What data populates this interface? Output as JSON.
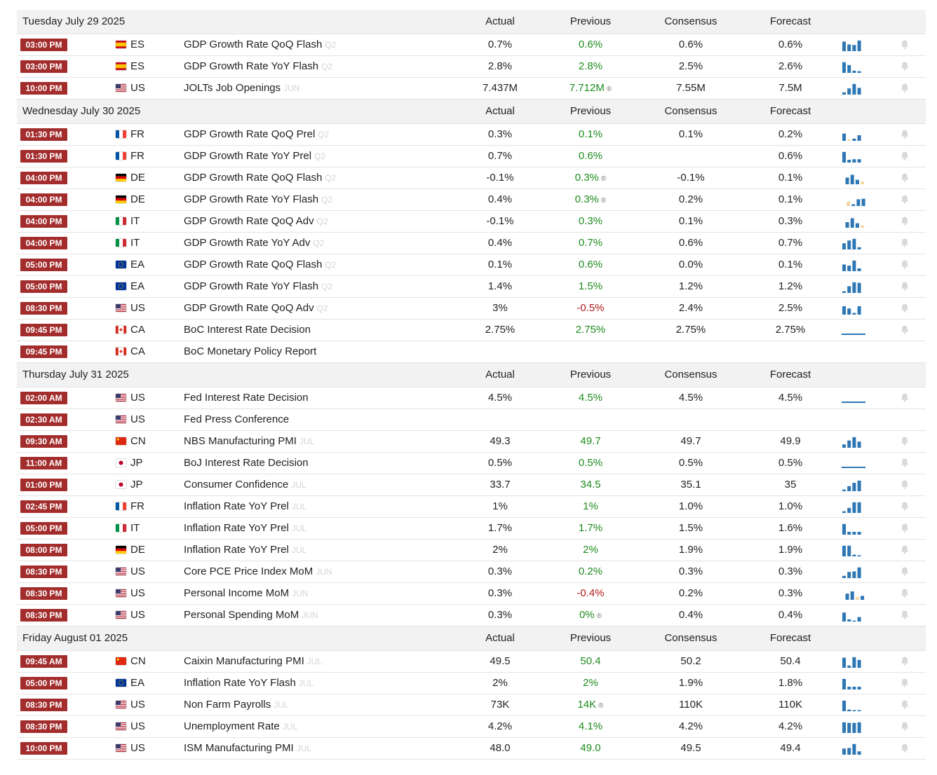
{
  "colors": {
    "time_badge": "#a32d2d",
    "prev_up": "#1e8b1e",
    "prev_down": "#b31b1b",
    "spark_bar": "#2e77b5",
    "spark_pending": "#f4d9a4"
  },
  "days": [
    {
      "date": "Tuesday July 29 2025",
      "headers": {
        "actual": "Actual",
        "previous": "Previous",
        "consensus": "Consensus",
        "forecast": "Forecast"
      },
      "events": [
        {
          "time": "03:00 PM",
          "flag": "es",
          "country": "ES",
          "event": "GDP Growth Rate QoQ Flash",
          "ref": "Q2",
          "actual": "0.7%",
          "previous": "0.6%",
          "prev_trend": "up",
          "revised": false,
          "consensus": "0.6%",
          "forecast": "0.6%",
          "spark": [
            0.85,
            0.6,
            0.55,
            0.95
          ],
          "pending": [],
          "line": false
        },
        {
          "time": "03:00 PM",
          "flag": "es",
          "country": "ES",
          "event": "GDP Growth Rate YoY Flash",
          "ref": "Q2",
          "actual": "2.8%",
          "previous": "2.8%",
          "prev_trend": "up",
          "revised": false,
          "consensus": "2.5%",
          "forecast": "2.6%",
          "spark": [
            0.95,
            0.7,
            0.2,
            0.15
          ],
          "pending": [],
          "line": false
        },
        {
          "time": "10:00 PM",
          "flag": "us",
          "country": "US",
          "event": "JOLTs Job Openings",
          "ref": "JUN",
          "actual": "7.437M",
          "previous": "7.712M",
          "prev_trend": "up",
          "revised": true,
          "consensus": "7.55M",
          "forecast": "7.5M",
          "spark": [
            0.2,
            0.55,
            0.95,
            0.6
          ],
          "pending": [],
          "line": false
        }
      ]
    },
    {
      "date": "Wednesday July 30 2025",
      "headers": {
        "actual": "Actual",
        "previous": "Previous",
        "consensus": "Consensus",
        "forecast": "Forecast"
      },
      "events": [
        {
          "time": "01:30 PM",
          "flag": "fr",
          "country": "FR",
          "event": "GDP Growth Rate QoQ Prel",
          "ref": "Q2",
          "actual": "0.3%",
          "previous": "0.1%",
          "prev_trend": "up",
          "revised": false,
          "consensus": "0.1%",
          "forecast": "0.2%",
          "spark": [
            0.65,
            0.15,
            0.2,
            0.5
          ],
          "pending": [
            1
          ],
          "line": false
        },
        {
          "time": "01:30 PM",
          "flag": "fr",
          "country": "FR",
          "event": "GDP Growth Rate YoY Prel",
          "ref": "Q2",
          "actual": "0.7%",
          "previous": "0.6%",
          "prev_trend": "up",
          "revised": false,
          "consensus": "",
          "forecast": "0.6%",
          "spark": [
            0.95,
            0.25,
            0.3,
            0.3
          ],
          "pending": [],
          "line": false
        },
        {
          "time": "04:00 PM",
          "flag": "de",
          "country": "DE",
          "event": "GDP Growth Rate QoQ Flash",
          "ref": "Q2",
          "actual": "-0.1%",
          "previous": "0.3%",
          "prev_trend": "up",
          "revised": true,
          "consensus": "-0.1%",
          "forecast": "0.1%",
          "spark": [
            0.6,
            0.85,
            0.4,
            0.25
          ],
          "pending": [
            3
          ],
          "line": false,
          "shift": 0.45
        },
        {
          "time": "04:00 PM",
          "flag": "de",
          "country": "DE",
          "event": "GDP Growth Rate YoY Flash",
          "ref": "Q2",
          "actual": "0.4%",
          "previous": "0.3%",
          "prev_trend": "up",
          "revised": true,
          "consensus": "0.2%",
          "forecast": "0.1%",
          "spark": [
            0.4,
            0.15,
            0.6,
            0.65
          ],
          "pending": [
            0
          ],
          "line": false,
          "shift": 0.6
        },
        {
          "time": "04:00 PM",
          "flag": "it",
          "country": "IT",
          "event": "GDP Growth Rate QoQ Adv",
          "ref": "Q2",
          "actual": "-0.1%",
          "previous": "0.3%",
          "prev_trend": "up",
          "revised": false,
          "consensus": "0.1%",
          "forecast": "0.3%",
          "spark": [
            0.5,
            0.85,
            0.4,
            0.2
          ],
          "pending": [
            3
          ],
          "line": false,
          "shift": 0.45
        },
        {
          "time": "04:00 PM",
          "flag": "it",
          "country": "IT",
          "event": "GDP Growth Rate YoY Adv",
          "ref": "Q2",
          "actual": "0.4%",
          "previous": "0.7%",
          "prev_trend": "up",
          "revised": false,
          "consensus": "0.6%",
          "forecast": "0.7%",
          "spark": [
            0.55,
            0.8,
            0.95,
            0.2
          ],
          "pending": [],
          "line": false
        },
        {
          "time": "05:00 PM",
          "flag": "eu",
          "country": "EA",
          "event": "GDP Growth Rate QoQ Flash",
          "ref": "Q2",
          "actual": "0.1%",
          "previous": "0.6%",
          "prev_trend": "up",
          "revised": false,
          "consensus": "0.0%",
          "forecast": "0.1%",
          "spark": [
            0.6,
            0.5,
            0.95,
            0.25
          ],
          "pending": [],
          "line": false
        },
        {
          "time": "05:00 PM",
          "flag": "eu",
          "country": "EA",
          "event": "GDP Growth Rate YoY Flash",
          "ref": "Q2",
          "actual": "1.4%",
          "previous": "1.5%",
          "prev_trend": "up",
          "revised": false,
          "consensus": "1.2%",
          "forecast": "1.2%",
          "spark": [
            0.15,
            0.6,
            0.95,
            0.9
          ],
          "pending": [],
          "line": false
        },
        {
          "time": "08:30 PM",
          "flag": "us",
          "country": "US",
          "event": "GDP Growth Rate QoQ Adv",
          "ref": "Q2",
          "actual": "3%",
          "previous": "-0.5%",
          "prev_trend": "down",
          "revised": false,
          "consensus": "2.4%",
          "forecast": "2.5%",
          "spark": [
            0.75,
            0.55,
            0.15,
            0.75
          ],
          "pending": [],
          "line": false
        },
        {
          "time": "09:45 PM",
          "flag": "ca",
          "country": "CA",
          "event": "BoC Interest Rate Decision",
          "ref": "",
          "actual": "2.75%",
          "previous": "2.75%",
          "prev_trend": "up",
          "revised": false,
          "consensus": "2.75%",
          "forecast": "2.75%",
          "spark": [
            0.1,
            0.1,
            0.1,
            0.1
          ],
          "pending": [],
          "line": true
        },
        {
          "time": "09:45 PM",
          "flag": "ca",
          "country": "CA",
          "event": "BoC Monetary Policy Report",
          "ref": "",
          "actual": "",
          "previous": "",
          "prev_trend": "up",
          "revised": false,
          "consensus": "",
          "forecast": "",
          "spark": [],
          "pending": [],
          "line": false,
          "no_bell": true
        }
      ]
    },
    {
      "date": "Thursday July 31 2025",
      "headers": {
        "actual": "Actual",
        "previous": "Previous",
        "consensus": "Consensus",
        "forecast": "Forecast"
      },
      "events": [
        {
          "time": "02:00 AM",
          "flag": "us",
          "country": "US",
          "event": "Fed Interest Rate Decision",
          "ref": "",
          "actual": "4.5%",
          "previous": "4.5%",
          "prev_trend": "up",
          "revised": false,
          "consensus": "4.5%",
          "forecast": "4.5%",
          "spark": [
            0.1,
            0.1,
            0.1,
            0.1
          ],
          "pending": [],
          "line": true
        },
        {
          "time": "02:30 AM",
          "flag": "us",
          "country": "US",
          "event": "Fed Press Conference",
          "ref": "",
          "actual": "",
          "previous": "",
          "prev_trend": "up",
          "revised": false,
          "consensus": "",
          "forecast": "",
          "spark": [],
          "pending": [],
          "line": false,
          "no_bell": true
        },
        {
          "time": "09:30 AM",
          "flag": "cn",
          "country": "CN",
          "event": "NBS Manufacturing PMI",
          "ref": "JUL",
          "actual": "49.3",
          "previous": "49.7",
          "prev_trend": "up",
          "revised": false,
          "consensus": "49.7",
          "forecast": "49.9",
          "spark": [
            0.3,
            0.65,
            0.95,
            0.55
          ],
          "pending": [],
          "line": false
        },
        {
          "time": "11:00 AM",
          "flag": "jp",
          "country": "JP",
          "event": "BoJ Interest Rate Decision",
          "ref": "",
          "actual": "0.5%",
          "previous": "0.5%",
          "prev_trend": "up",
          "revised": false,
          "consensus": "0.5%",
          "forecast": "0.5%",
          "spark": [
            0.1,
            0.1,
            0.1,
            0.1
          ],
          "pending": [],
          "line": true
        },
        {
          "time": "01:00 PM",
          "flag": "jp",
          "country": "JP",
          "event": "Consumer Confidence",
          "ref": "JUL",
          "actual": "33.7",
          "previous": "34.5",
          "prev_trend": "up",
          "revised": false,
          "consensus": "35.1",
          "forecast": "35",
          "spark": [
            0.15,
            0.45,
            0.75,
            0.95
          ],
          "pending": [],
          "line": false
        },
        {
          "time": "02:45 PM",
          "flag": "fr",
          "country": "FR",
          "event": "Inflation Rate YoY Prel",
          "ref": "JUL",
          "actual": "1%",
          "previous": "1%",
          "prev_trend": "up",
          "revised": false,
          "consensus": "1.0%",
          "forecast": "1.0%",
          "spark": [
            0.15,
            0.45,
            0.95,
            0.95
          ],
          "pending": [],
          "line": false
        },
        {
          "time": "05:00 PM",
          "flag": "it",
          "country": "IT",
          "event": "Inflation Rate YoY Prel",
          "ref": "JUL",
          "actual": "1.7%",
          "previous": "1.7%",
          "prev_trend": "up",
          "revised": false,
          "consensus": "1.5%",
          "forecast": "1.6%",
          "spark": [
            0.95,
            0.25,
            0.25,
            0.25
          ],
          "pending": [],
          "line": false
        },
        {
          "time": "08:00 PM",
          "flag": "de",
          "country": "DE",
          "event": "Inflation Rate YoY Prel",
          "ref": "JUL",
          "actual": "2%",
          "previous": "2%",
          "prev_trend": "up",
          "revised": false,
          "consensus": "1.9%",
          "forecast": "1.9%",
          "spark": [
            0.95,
            0.95,
            0.15,
            0.1
          ],
          "pending": [],
          "line": false
        },
        {
          "time": "08:30 PM",
          "flag": "us",
          "country": "US",
          "event": "Core PCE Price Index MoM",
          "ref": "JUN",
          "actual": "0.3%",
          "previous": "0.2%",
          "prev_trend": "up",
          "revised": false,
          "consensus": "0.3%",
          "forecast": "0.3%",
          "spark": [
            0.2,
            0.55,
            0.6,
            0.95
          ],
          "pending": [],
          "line": false
        },
        {
          "time": "08:30 PM",
          "flag": "us",
          "country": "US",
          "event": "Personal Income MoM",
          "ref": "JUN",
          "actual": "0.3%",
          "previous": "-0.4%",
          "prev_trend": "down",
          "revised": false,
          "consensus": "0.2%",
          "forecast": "0.3%",
          "spark": [
            0.55,
            0.75,
            0.25,
            0.35
          ],
          "pending": [
            2
          ],
          "line": false,
          "shift": 0.45
        },
        {
          "time": "08:30 PM",
          "flag": "us",
          "country": "US",
          "event": "Personal Spending MoM",
          "ref": "JUN",
          "actual": "0.3%",
          "previous": "0%",
          "prev_trend": "up",
          "revised": true,
          "consensus": "0.4%",
          "forecast": "0.4%",
          "spark": [
            0.8,
            0.2,
            0,
            0.4
          ],
          "pending": [],
          "line": false
        }
      ]
    },
    {
      "date": "Friday August 01 2025",
      "headers": {
        "actual": "Actual",
        "previous": "Previous",
        "consensus": "Consensus",
        "forecast": "Forecast"
      },
      "events": [
        {
          "time": "09:45 AM",
          "flag": "cn",
          "country": "CN",
          "event": "Caixin Manufacturing PMI",
          "ref": "JUL",
          "actual": "49.5",
          "previous": "50.4",
          "prev_trend": "up",
          "revised": false,
          "consensus": "50.2",
          "forecast": "50.4",
          "spark": [
            0.9,
            0.2,
            0.95,
            0.7
          ],
          "pending": [],
          "line": false
        },
        {
          "time": "05:00 PM",
          "flag": "eu",
          "country": "EA",
          "event": "Inflation Rate YoY Flash",
          "ref": "JUL",
          "actual": "2%",
          "previous": "2%",
          "prev_trend": "up",
          "revised": false,
          "consensus": "1.9%",
          "forecast": "1.8%",
          "spark": [
            0.95,
            0.25,
            0.25,
            0.25
          ],
          "pending": [],
          "line": false
        },
        {
          "time": "08:30 PM",
          "flag": "us",
          "country": "US",
          "event": "Non Farm Payrolls",
          "ref": "JUL",
          "actual": "73K",
          "previous": "14K",
          "prev_trend": "up",
          "revised": true,
          "consensus": "110K",
          "forecast": "110K",
          "spark": [
            0.95,
            0.15,
            0.1,
            0.1
          ],
          "pending": [],
          "line": false
        },
        {
          "time": "08:30 PM",
          "flag": "us",
          "country": "US",
          "event": "Unemployment Rate",
          "ref": "JUL",
          "actual": "4.2%",
          "previous": "4.1%",
          "prev_trend": "up",
          "revised": false,
          "consensus": "4.2%",
          "forecast": "4.2%",
          "spark": [
            0.95,
            0.9,
            0.9,
            0.95
          ],
          "pending": [],
          "line": false
        },
        {
          "time": "10:00 PM",
          "flag": "us",
          "country": "US",
          "event": "ISM Manufacturing PMI",
          "ref": "JUL",
          "actual": "48.0",
          "previous": "49.0",
          "prev_trend": "up",
          "revised": false,
          "consensus": "49.5",
          "forecast": "49.4",
          "spark": [
            0.55,
            0.6,
            0.95,
            0.3
          ],
          "pending": [],
          "line": false
        }
      ]
    }
  ]
}
